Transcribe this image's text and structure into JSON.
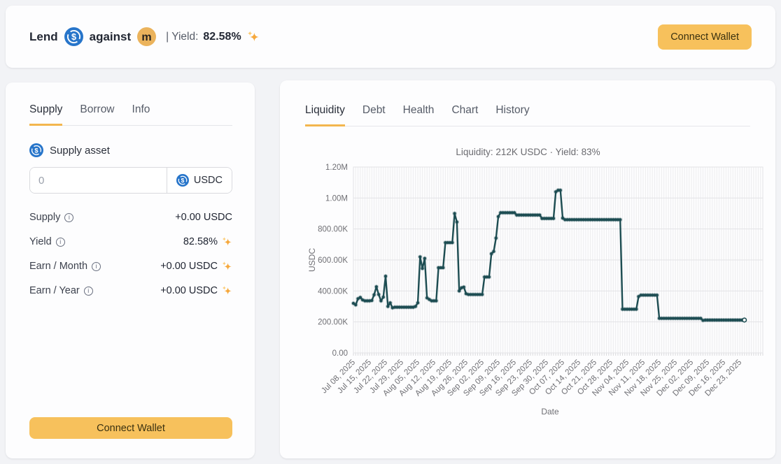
{
  "header": {
    "title_lend": "Lend",
    "title_against": "against",
    "yield_label": "| Yield:",
    "yield_value": "82.58%",
    "connect_wallet_label": "Connect Wallet"
  },
  "icons": {
    "usdc": "blue-circle-dollar",
    "m_token": "amber-circle-m",
    "sparkle": "orange-sparkle",
    "info": "circled-i"
  },
  "colors": {
    "accent_orange": "#f3b64e",
    "button_bg": "#f7c15c",
    "chart_line": "#1d4d52",
    "usdc_blue": "#2775CA",
    "m_token_bg": "#ebb35c"
  },
  "left_panel": {
    "tabs": [
      {
        "label": "Supply",
        "active": true
      },
      {
        "label": "Borrow",
        "active": false
      },
      {
        "label": "Info",
        "active": false
      }
    ],
    "supply_asset_label": "Supply asset",
    "input": {
      "placeholder": "0",
      "token": "USDC"
    },
    "stats": [
      {
        "label": "Supply",
        "value": "+0.00 USDC"
      },
      {
        "label": "Yield",
        "value": "82.58%"
      },
      {
        "label": "Earn / Month",
        "value": "+0.00 USDC"
      },
      {
        "label": "Earn / Year",
        "value": "+0.00 USDC"
      }
    ],
    "connect_wallet_label": "Connect Wallet"
  },
  "right_panel": {
    "tabs": [
      {
        "label": "Liquidity",
        "active": true
      },
      {
        "label": "Debt",
        "active": false
      },
      {
        "label": "Health",
        "active": false
      },
      {
        "label": "Chart",
        "active": false
      },
      {
        "label": "History",
        "active": false
      }
    ]
  },
  "chart_data": {
    "type": "line",
    "title": "Liquidity: 212K USDC · Yield: 83%",
    "xlabel": "Date",
    "ylabel": "USDC",
    "ylim": [
      0,
      1200000
    ],
    "ytick_labels": [
      "0.00",
      "200.00K",
      "400.00K",
      "600.00K",
      "800.00K",
      "1.00M",
      "1.20M"
    ],
    "grid": true,
    "legend": false,
    "line_color": "#1d4d52",
    "start_date": "Jul 08, 2025",
    "x_tick_days": [
      0,
      7,
      14,
      21,
      28,
      35,
      42,
      49,
      56,
      63,
      70,
      77,
      84,
      91,
      98,
      105,
      112,
      119,
      126,
      133,
      140,
      147,
      154,
      161,
      168
    ],
    "x_tick_labels": [
      "Jul 08, 2025",
      "Jul 15, 2025",
      "Jul 22, 2025",
      "Jul 29, 2025",
      "Aug 05, 2025",
      "Aug 12, 2025",
      "Aug 19, 2025",
      "Aug 26, 2025",
      "Sep 02, 2025",
      "Sep 09, 2025",
      "Sep 16, 2025",
      "Sep 23, 2025",
      "Sep 30, 2025",
      "Oct 07, 2025",
      "Oct 14, 2025",
      "Oct 21, 2025",
      "Oct 28, 2025",
      "Nov 04, 2025",
      "Nov 11, 2025",
      "Nov 18, 2025",
      "Nov 25, 2025",
      "Dec 02, 2025",
      "Dec 09, 2025",
      "Dec 16, 2025",
      "Dec 23, 2025"
    ],
    "unit": "K USDC",
    "values_k": [
      320,
      310,
      350,
      358,
      342,
      336,
      336,
      336,
      338,
      375,
      427,
      377,
      336,
      360,
      495,
      300,
      323,
      291,
      295,
      295,
      295,
      295,
      295,
      295,
      295,
      295,
      295,
      300,
      323,
      620,
      545,
      610,
      355,
      345,
      336,
      336,
      336,
      550,
      550,
      550,
      712,
      712,
      712,
      712,
      900,
      845,
      400,
      420,
      425,
      382,
      377,
      377,
      377,
      377,
      377,
      377,
      377,
      490,
      490,
      490,
      640,
      655,
      741,
      880,
      905,
      905,
      905,
      905,
      905,
      905,
      905,
      890,
      890,
      890,
      890,
      890,
      890,
      890,
      890,
      890,
      890,
      890,
      868,
      868,
      868,
      868,
      868,
      868,
      1040,
      1050,
      1050,
      870,
      860,
      860,
      860,
      860,
      860,
      860,
      860,
      860,
      860,
      860,
      860,
      860,
      860,
      860,
      860,
      860,
      860,
      860,
      860,
      860,
      860,
      860,
      860,
      860,
      860,
      282,
      282,
      282,
      282,
      282,
      282,
      282,
      364,
      373,
      373,
      373,
      373,
      373,
      373,
      373,
      373,
      223,
      223,
      223,
      223,
      223,
      223,
      223,
      223,
      223,
      223,
      223,
      223,
      223,
      223,
      223,
      223,
      223,
      223,
      223,
      210,
      212,
      212,
      212,
      212,
      212,
      212,
      212,
      212,
      212,
      212,
      212,
      212,
      212,
      212,
      212,
      212,
      212,
      212
    ]
  }
}
